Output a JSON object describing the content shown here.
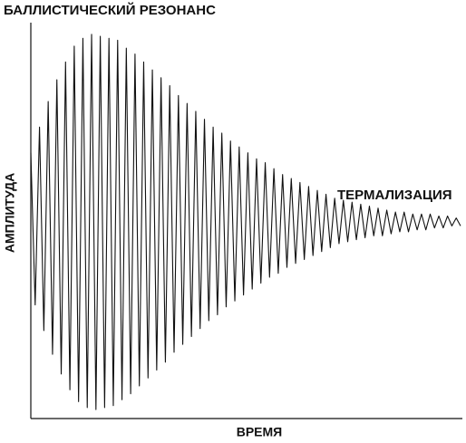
{
  "chart_data": {
    "type": "line",
    "title": "БАЛЛИСТИЧЕСКИЙ РЕЗОНАНС",
    "annotation": "ТЕРМАЛИЗАЦИЯ",
    "y_label": "АМПЛИТУДА",
    "x_label": "ВРЕМЯ",
    "color": "#111111",
    "xlim": [
      0,
      99
    ],
    "ylim": [
      -100,
      100
    ],
    "x": [
      0,
      1,
      2,
      3,
      4,
      5,
      6,
      7,
      8,
      9,
      10,
      11,
      12,
      13,
      14,
      15,
      16,
      17,
      18,
      19,
      20,
      21,
      22,
      23,
      24,
      25,
      26,
      27,
      28,
      29,
      30,
      31,
      32,
      33,
      34,
      35,
      36,
      37,
      38,
      39,
      40,
      41,
      42,
      43,
      44,
      45,
      46,
      47,
      48,
      49,
      50,
      51,
      52,
      53,
      54,
      55,
      56,
      57,
      58,
      59,
      60,
      61,
      62,
      63,
      64,
      65,
      66,
      67,
      68,
      69,
      70,
      71,
      72,
      73,
      74,
      75,
      76,
      77,
      78,
      79,
      80,
      81,
      82,
      83,
      84,
      85,
      86,
      87,
      88,
      89,
      90,
      91,
      92,
      93,
      94,
      95,
      96,
      97,
      98,
      99
    ],
    "values": [
      35,
      -42,
      48,
      -55,
      61,
      -67,
      72,
      -77,
      81,
      -85,
      89,
      -91,
      93,
      -94,
      95,
      -95,
      94,
      -94,
      93,
      -93,
      92,
      -90,
      88,
      -87,
      85,
      -83,
      81,
      -79,
      77,
      -75,
      73,
      -71,
      69,
      -66,
      64,
      -62,
      60,
      -58,
      56,
      -54,
      52,
      -50,
      48,
      -47,
      45,
      -43,
      41,
      -40,
      38,
      -37,
      35,
      -34,
      32,
      -31,
      30,
      -28,
      27,
      -26,
      24,
      -23,
      22,
      -21,
      20,
      -19,
      18,
      -17,
      16,
      -15,
      14,
      -13,
      12,
      -11,
      11,
      -10,
      10,
      -9,
      9,
      -8,
      8,
      -7,
      7,
      -7,
      6,
      -6,
      5,
      -5,
      5,
      -5,
      4,
      -4,
      4,
      -4,
      4,
      -3,
      3,
      -3,
      3,
      -2,
      2,
      -2
    ]
  }
}
